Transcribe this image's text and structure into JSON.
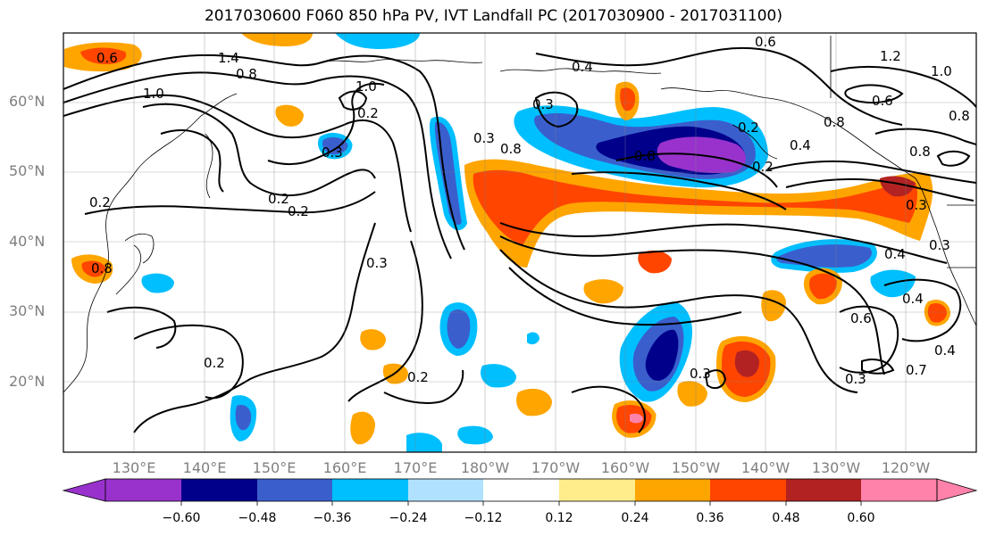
{
  "title": "2017030600 F060 850 hPa PV, IVT Landfall PC (2017030900 - 2017031100)",
  "map": {
    "lat_labels": [
      "60°N",
      "50°N",
      "40°N",
      "30°N",
      "20°N"
    ],
    "lon_labels": [
      "130°E",
      "140°E",
      "150°E",
      "160°E",
      "170°E",
      "180°W",
      "170°W",
      "160°W",
      "150°W",
      "140°W",
      "130°W",
      "120°W"
    ],
    "extent": {
      "lon_min": 120,
      "lon_max": 250,
      "lat_min": 10,
      "lat_max": 70
    },
    "gridlines": true,
    "contour_labels": [
      "0.6",
      "1.4",
      "0.8",
      "1.0",
      "1.0",
      "0.2",
      "0.3",
      "0.4",
      "0.6",
      "1.2",
      "1.0",
      "0.6",
      "0.8",
      "0.8",
      "0.3",
      "0.3",
      "0.8",
      "0.8",
      "0.2",
      "0.4",
      "0.8",
      "0.2",
      "0.2",
      "0.3",
      "0.3",
      "0.8",
      "0.4",
      "0.3",
      "0.4",
      "0.6",
      "0.4",
      "0.7",
      "0.3",
      "0.2",
      "0.2",
      "0.3",
      "0.2",
      "0.2"
    ]
  },
  "colorbar": {
    "ticks": [
      "−0.60",
      "−0.48",
      "−0.36",
      "−0.24",
      "−0.12",
      "0.12",
      "0.24",
      "0.36",
      "0.48",
      "0.60"
    ],
    "colors": [
      "#9932cc",
      "#00008b",
      "#3a5fcd",
      "#00bfff",
      "#b0e2ff",
      "#ffffff",
      "#ffec8b",
      "#ffa500",
      "#ff4500",
      "#b22222",
      "#ff82ab"
    ]
  }
}
